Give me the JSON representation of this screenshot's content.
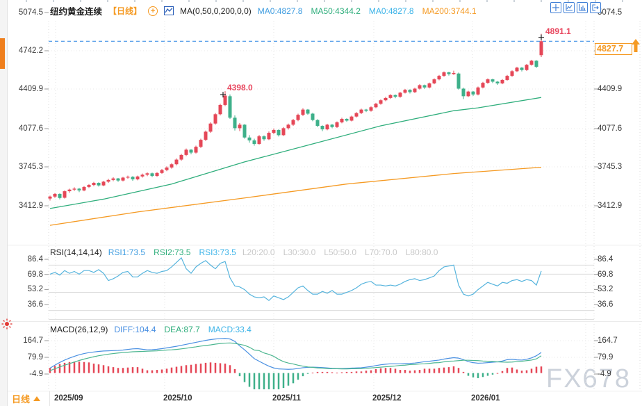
{
  "header": {
    "symbol": "纽约黄金连续",
    "period": "【日线】",
    "ma_formula": "MA(0,50,0,200,0,0)",
    "ma_values": [
      {
        "label": "MA0:4827.8",
        "color": "#3e9ce0"
      },
      {
        "label": "MA50:4344.2",
        "color": "#2fae7c"
      },
      {
        "label": "MA0:4827.8",
        "color": "#3bb3e8"
      },
      {
        "label": "MA200:3744.1",
        "color": "#f59a23"
      }
    ]
  },
  "toolbar": {
    "icons": [
      "crosshair",
      "axes-line-chart",
      "axes-bar-chart",
      "exit-right"
    ]
  },
  "axes": {
    "price_ticks": [
      "5074.5",
      "4742.2",
      "4409.9",
      "4077.6",
      "3745.3",
      "3412.9"
    ],
    "rsi_ticks": [
      "86.4",
      "69.8",
      "53.2",
      "36.6"
    ],
    "macd_ticks": [
      "164.7",
      "79.9",
      "-4.9"
    ],
    "dates": [
      "2025/09",
      "2025/10",
      "2025/11",
      "2025/12",
      "2026/01"
    ]
  },
  "rsi_header": {
    "title": "RSI(14,14,14)",
    "series": [
      {
        "label": "RSI1:73.5",
        "color": "#3e9ce0"
      },
      {
        "label": "RSI2:73.5",
        "color": "#2fae7c"
      },
      {
        "label": "RSI3:73.5",
        "color": "#3bb3e8"
      }
    ],
    "levels": [
      "L20:20.0",
      "L30:30.0",
      "L50:50.0",
      "L70:70.0",
      "L80:80.0"
    ]
  },
  "macd_header": {
    "title": "MACD(26,12,9)",
    "series": [
      {
        "label": "DIFF:104.4",
        "color": "#4a90e2"
      },
      {
        "label": "DEA:87.7",
        "color": "#2fae7c"
      },
      {
        "label": "MACD:33.4",
        "color": "#3bb3e8"
      }
    ]
  },
  "annotations": {
    "peak_october": "4398.0",
    "peak_latest": "4891.1",
    "last_price": "4827.7"
  },
  "bottom_tab": {
    "label": "日线"
  },
  "watermark": "FX678",
  "colors": {
    "up": "#e54757",
    "down": "#3eb08a",
    "ma50": "#2fae7c",
    "ma200": "#f59a23",
    "rsi": "#56b4dd",
    "diff": "#4a90e2",
    "dea": "#4cb690",
    "accent": "#f59a23",
    "price_line": "#3a8ee6"
  },
  "chart_data": {
    "type": "candlestick",
    "title": "纽约黄金连续 日线",
    "x_categories": [
      "2025/09",
      "2025/10",
      "2025/11",
      "2025/12",
      "2026/01"
    ],
    "price_axis_ticks": [
      5074.5,
      4742.2,
      4409.9,
      4077.6,
      3745.3,
      3412.9
    ],
    "current_price": 4827.7,
    "peak_markers": [
      {
        "index": 36,
        "price": 4398.0
      },
      {
        "index": 101,
        "price": 4891.1
      }
    ],
    "ohlc": [
      [
        3475,
        3500,
        3458,
        3492
      ],
      [
        3492,
        3522,
        3480,
        3515
      ],
      [
        3515,
        3520,
        3468,
        3480
      ],
      [
        3482,
        3545,
        3475,
        3538
      ],
      [
        3538,
        3560,
        3525,
        3552
      ],
      [
        3552,
        3572,
        3540,
        3560
      ],
      [
        3560,
        3566,
        3530,
        3545
      ],
      [
        3545,
        3582,
        3538,
        3575
      ],
      [
        3575,
        3600,
        3565,
        3592
      ],
      [
        3592,
        3618,
        3580,
        3610
      ],
      [
        3610,
        3615,
        3578,
        3588
      ],
      [
        3588,
        3628,
        3580,
        3620
      ],
      [
        3620,
        3645,
        3610,
        3635
      ],
      [
        3635,
        3658,
        3624,
        3648
      ],
      [
        3648,
        3652,
        3618,
        3630
      ],
      [
        3630,
        3662,
        3622,
        3655
      ],
      [
        3655,
        3672,
        3645,
        3662
      ],
      [
        3662,
        3668,
        3628,
        3640
      ],
      [
        3640,
        3672,
        3632,
        3665
      ],
      [
        3665,
        3690,
        3655,
        3680
      ],
      [
        3680,
        3700,
        3668,
        3692
      ],
      [
        3692,
        3698,
        3658,
        3670
      ],
      [
        3670,
        3702,
        3662,
        3695
      ],
      [
        3695,
        3730,
        3688,
        3720
      ],
      [
        3720,
        3752,
        3710,
        3742
      ],
      [
        3742,
        3780,
        3732,
        3770
      ],
      [
        3770,
        3820,
        3760,
        3810
      ],
      [
        3810,
        3860,
        3800,
        3850
      ],
      [
        3850,
        3905,
        3840,
        3895
      ],
      [
        3895,
        3900,
        3855,
        3870
      ],
      [
        3870,
        3930,
        3862,
        3920
      ],
      [
        3920,
        3990,
        3910,
        3980
      ],
      [
        3980,
        4060,
        3970,
        4050
      ],
      [
        4050,
        4130,
        4040,
        4120
      ],
      [
        4120,
        4210,
        4110,
        4200
      ],
      [
        4200,
        4290,
        4190,
        4280
      ],
      [
        4280,
        4398,
        4270,
        4360
      ],
      [
        4355,
        4370,
        4160,
        4170
      ],
      [
        4170,
        4190,
        4060,
        4080
      ],
      [
        4080,
        4125,
        4055,
        4110
      ],
      [
        4110,
        4115,
        3990,
        4000
      ],
      [
        4000,
        4020,
        3955,
        3975
      ],
      [
        3975,
        3990,
        3930,
        3945
      ],
      [
        3945,
        4022,
        3938,
        4010
      ],
      [
        4010,
        4018,
        3972,
        3985
      ],
      [
        3985,
        4052,
        3978,
        4040
      ],
      [
        4040,
        4078,
        4028,
        4065
      ],
      [
        4065,
        4070,
        4008,
        4020
      ],
      [
        4020,
        4090,
        4012,
        4080
      ],
      [
        4080,
        4120,
        4068,
        4110
      ],
      [
        4110,
        4160,
        4100,
        4150
      ],
      [
        4150,
        4205,
        4140,
        4195
      ],
      [
        4195,
        4252,
        4185,
        4240
      ],
      [
        4240,
        4245,
        4195,
        4205
      ],
      [
        4205,
        4212,
        4140,
        4150
      ],
      [
        4150,
        4158,
        4088,
        4100
      ],
      [
        4100,
        4105,
        4055,
        4070
      ],
      [
        4070,
        4118,
        4062,
        4110
      ],
      [
        4110,
        4116,
        4080,
        4090
      ],
      [
        4090,
        4138,
        4082,
        4130
      ],
      [
        4130,
        4170,
        4122,
        4160
      ],
      [
        4160,
        4165,
        4135,
        4145
      ],
      [
        4145,
        4188,
        4138,
        4180
      ],
      [
        4180,
        4218,
        4172,
        4210
      ],
      [
        4210,
        4248,
        4202,
        4240
      ],
      [
        4240,
        4246,
        4218,
        4230
      ],
      [
        4230,
        4268,
        4222,
        4260
      ],
      [
        4260,
        4298,
        4252,
        4290
      ],
      [
        4290,
        4328,
        4282,
        4320
      ],
      [
        4320,
        4350,
        4312,
        4340
      ],
      [
        4340,
        4372,
        4332,
        4365
      ],
      [
        4365,
        4370,
        4338,
        4350
      ],
      [
        4350,
        4392,
        4342,
        4385
      ],
      [
        4385,
        4418,
        4378,
        4410
      ],
      [
        4410,
        4415,
        4378,
        4390
      ],
      [
        4390,
        4428,
        4382,
        4420
      ],
      [
        4420,
        4458,
        4412,
        4450
      ],
      [
        4450,
        4455,
        4418,
        4430
      ],
      [
        4430,
        4472,
        4422,
        4465
      ],
      [
        4465,
        4508,
        4458,
        4500
      ],
      [
        4500,
        4538,
        4492,
        4530
      ],
      [
        4530,
        4568,
        4522,
        4560
      ],
      [
        4560,
        4565,
        4532,
        4545
      ],
      [
        4545,
        4575,
        4538,
        4555
      ],
      [
        4550,
        4558,
        4412,
        4420
      ],
      [
        4420,
        4428,
        4330,
        4355
      ],
      [
        4355,
        4402,
        4348,
        4395
      ],
      [
        4395,
        4400,
        4358,
        4370
      ],
      [
        4370,
        4438,
        4362,
        4430
      ],
      [
        4430,
        4478,
        4422,
        4470
      ],
      [
        4470,
        4508,
        4462,
        4500
      ],
      [
        4500,
        4505,
        4468,
        4480
      ],
      [
        4480,
        4486,
        4452,
        4465
      ],
      [
        4465,
        4502,
        4458,
        4495
      ],
      [
        4495,
        4538,
        4488,
        4530
      ],
      [
        4530,
        4578,
        4522,
        4570
      ],
      [
        4570,
        4608,
        4562,
        4600
      ],
      [
        4600,
        4606,
        4568,
        4580
      ],
      [
        4580,
        4632,
        4572,
        4625
      ],
      [
        4625,
        4668,
        4618,
        4660
      ],
      [
        4660,
        4665,
        4598,
        4608
      ],
      [
        4708,
        4891.1,
        4692,
        4827.7
      ]
    ],
    "ma50_anchors": [
      [
        0,
        3390
      ],
      [
        11,
        3470
      ],
      [
        25,
        3600
      ],
      [
        40,
        3790
      ],
      [
        54,
        3945
      ],
      [
        68,
        4100
      ],
      [
        83,
        4230
      ],
      [
        88,
        4255
      ],
      [
        101,
        4344.2
      ]
    ],
    "ma200_anchors": [
      [
        0,
        3245
      ],
      [
        18,
        3360
      ],
      [
        40,
        3480
      ],
      [
        61,
        3600
      ],
      [
        83,
        3690
      ],
      [
        101,
        3744.1
      ]
    ],
    "rsi": {
      "params": "14,14,14",
      "levels": [
        80,
        70,
        50,
        30,
        20
      ],
      "values": [
        70,
        72,
        69,
        74,
        71,
        73,
        70,
        74,
        74,
        72,
        75,
        71,
        63,
        65,
        68,
        72,
        73,
        67,
        67,
        71,
        74,
        72,
        71,
        73,
        74,
        78,
        83,
        88,
        76,
        71,
        78,
        82,
        85,
        80,
        76,
        82,
        84,
        66,
        57,
        56,
        53,
        48,
        45,
        44,
        45,
        41,
        46,
        44,
        42,
        45,
        50,
        55,
        57,
        52,
        48,
        48,
        51,
        49,
        52,
        48,
        48,
        50,
        52,
        55,
        59,
        61,
        62,
        58,
        58,
        57,
        58,
        57,
        59,
        62,
        64,
        65,
        63,
        64,
        66,
        68,
        74,
        78,
        79,
        80,
        58,
        48,
        46,
        48,
        53,
        57,
        61,
        59,
        57,
        61,
        60,
        63,
        64,
        62,
        64,
        63,
        58,
        73.5
      ]
    },
    "macd": {
      "params": "26,12,9",
      "hist_rule": "2*(diff-dea)",
      "diff": [
        25,
        40,
        54,
        66,
        76,
        85,
        93,
        99,
        104,
        107,
        110,
        112,
        113,
        114,
        115,
        117,
        120,
        123,
        124,
        121,
        118,
        119,
        121,
        124,
        128,
        132,
        136,
        141,
        146,
        151,
        156,
        161,
        166,
        170,
        173,
        175,
        176,
        173,
        161,
        138,
        118,
        96,
        73,
        60,
        47,
        35,
        26,
        21,
        20,
        19,
        20,
        23,
        27,
        29,
        30,
        29,
        28,
        26,
        24,
        23,
        23,
        24,
        25,
        26,
        27,
        30,
        33,
        38,
        42,
        45,
        47,
        47,
        47,
        48,
        49,
        51,
        54,
        58,
        60,
        63,
        66,
        71,
        75,
        78,
        76,
        68,
        58,
        53,
        50,
        51,
        53,
        55,
        57,
        61,
        68,
        70,
        67,
        66,
        70,
        77,
        88,
        104.4
      ],
      "dea": [
        12,
        22,
        31,
        40,
        48,
        56,
        64,
        71,
        77,
        83,
        88,
        92,
        96,
        99,
        102,
        104,
        106,
        108,
        109,
        110,
        111,
        112,
        113,
        115,
        117,
        118,
        120,
        123,
        126,
        130,
        133,
        137,
        140,
        143,
        147,
        150,
        152,
        153,
        151,
        146,
        141,
        131,
        117,
        114,
        102,
        95,
        85,
        70,
        58,
        51,
        46,
        40,
        35,
        31,
        29,
        26,
        25,
        23,
        22,
        22,
        21,
        21,
        22,
        22,
        23,
        24,
        26,
        28,
        30,
        32,
        34,
        36,
        39,
        40,
        43,
        44,
        46,
        47,
        49,
        52,
        53,
        57,
        60,
        61,
        63,
        65,
        65,
        64,
        63,
        61,
        60,
        59,
        57,
        56,
        55,
        56,
        58,
        60,
        63,
        66,
        72,
        87.7
      ]
    }
  }
}
